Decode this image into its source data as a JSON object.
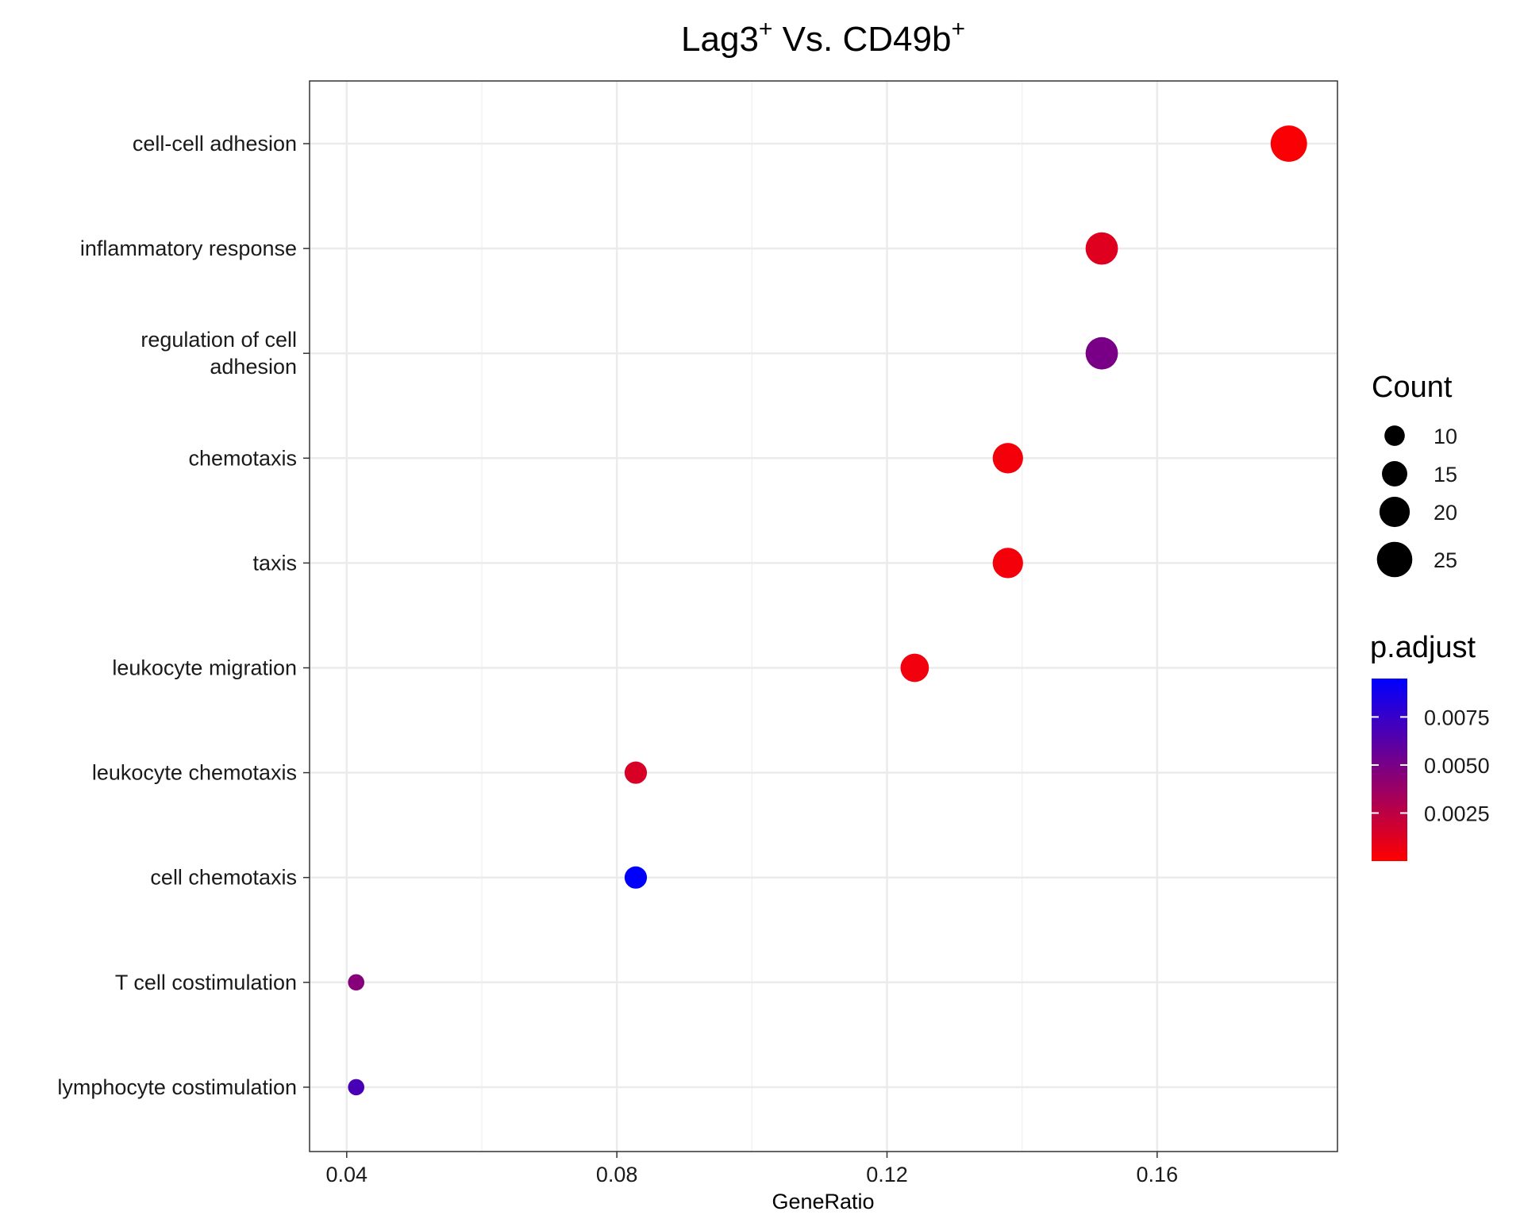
{
  "chart_data": {
    "type": "scatter",
    "title": {
      "part1": "Lag3",
      "sup1": "+",
      "middle": " Vs. CD49b",
      "sup2": "+"
    },
    "xlabel": "GeneRatio",
    "ylabel": "",
    "xlim": [
      0.0345,
      0.1867
    ],
    "x_ticks": [
      0.04,
      0.08,
      0.12,
      0.16
    ],
    "x_tick_labels": [
      "0.04",
      "0.08",
      "0.12",
      "0.16"
    ],
    "grid": true,
    "categories": [
      {
        "lines": [
          "cell-cell adhesion"
        ]
      },
      {
        "lines": [
          "inflammatory response"
        ]
      },
      {
        "lines": [
          "regulation of cell",
          "adhesion"
        ]
      },
      {
        "lines": [
          "chemotaxis"
        ]
      },
      {
        "lines": [
          "taxis"
        ]
      },
      {
        "lines": [
          "leukocyte migration"
        ]
      },
      {
        "lines": [
          "leukocyte chemotaxis"
        ]
      },
      {
        "lines": [
          "cell chemotaxis"
        ]
      },
      {
        "lines": [
          "T cell costimulation"
        ]
      },
      {
        "lines": [
          "lymphocyte costimulation"
        ]
      }
    ],
    "points": [
      {
        "x": 0.1795,
        "count": 26,
        "p_adjust": 0.0002
      },
      {
        "x": 0.1518,
        "count": 22,
        "p_adjust": 0.0012
      },
      {
        "x": 0.1518,
        "count": 22,
        "p_adjust": 0.005
      },
      {
        "x": 0.1379,
        "count": 20,
        "p_adjust": 0.0004
      },
      {
        "x": 0.1379,
        "count": 20,
        "p_adjust": 0.0004
      },
      {
        "x": 0.1241,
        "count": 18,
        "p_adjust": 0.0005
      },
      {
        "x": 0.0828,
        "count": 12,
        "p_adjust": 0.0014
      },
      {
        "x": 0.0828,
        "count": 12,
        "p_adjust": 0.0095
      },
      {
        "x": 0.0414,
        "count": 6,
        "p_adjust": 0.0045
      },
      {
        "x": 0.0414,
        "count": 6,
        "p_adjust": 0.0068
      }
    ],
    "size_legend": {
      "title": "Count",
      "entries": [
        {
          "label": "10",
          "value": 10
        },
        {
          "label": "15",
          "value": 15
        },
        {
          "label": "20",
          "value": 20
        },
        {
          "label": "25",
          "value": 25
        }
      ]
    },
    "color_legend": {
      "title": "p.adjust",
      "min": 0.0,
      "max": 0.0095,
      "low_color": "#ff0000",
      "high_color": "#0000ff",
      "ticks": [
        {
          "label": "0.0075",
          "value": 0.0075
        },
        {
          "label": "0.0050",
          "value": 0.005
        },
        {
          "label": "0.0025",
          "value": 0.0025
        }
      ]
    },
    "legend_position": "right"
  }
}
